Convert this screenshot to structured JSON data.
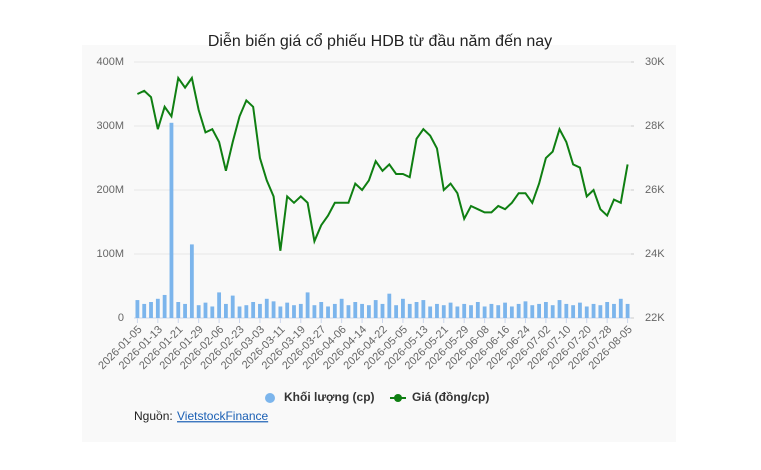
{
  "chart_data": {
    "type": "combo",
    "title": "Diễn biến giá cổ phiếu HDB từ đầu năm đến nay",
    "categories": [
      "2026-01-05",
      null,
      null,
      "2026-01-13",
      null,
      null,
      "2026-01-21",
      null,
      null,
      "2026-01-29",
      null,
      null,
      "2026-02-06",
      null,
      null,
      "2026-02-23",
      null,
      null,
      "2026-03-03",
      null,
      null,
      "2026-03-11",
      null,
      null,
      "2026-03-19",
      null,
      null,
      "2026-03-27",
      null,
      null,
      "2026-04-06",
      null,
      null,
      "2026-04-14",
      null,
      null,
      "2026-04-22",
      null,
      null,
      "2026-05-05",
      null,
      null,
      "2026-05-13",
      null,
      null,
      "2026-05-21",
      null,
      null,
      "2026-05-29",
      null,
      null,
      "2026-06-08",
      null,
      null,
      "2026-06-16",
      null,
      null,
      "2026-06-24",
      null,
      null,
      "2026-07-02",
      null,
      null,
      "2026-07-10",
      null,
      null,
      "2026-07-20",
      null,
      null,
      "2026-07-28",
      null,
      null,
      "2026-08-05"
    ],
    "series": [
      {
        "name": "Khối lượng (cp)",
        "type": "bar",
        "axis": "y",
        "color": "#7cb5ec",
        "values": [
          28000000,
          22000000,
          25000000,
          30000000,
          36000000,
          305000000,
          25000000,
          22000000,
          115000000,
          20000000,
          24000000,
          18000000,
          40000000,
          22000000,
          35000000,
          18000000,
          20000000,
          25000000,
          22000000,
          30000000,
          26000000,
          18000000,
          24000000,
          20000000,
          22000000,
          40000000,
          20000000,
          25000000,
          18000000,
          22000000,
          30000000,
          20000000,
          25000000,
          22000000,
          20000000,
          28000000,
          22000000,
          38000000,
          20000000,
          30000000,
          22000000,
          25000000,
          28000000,
          18000000,
          22000000,
          20000000,
          24000000,
          18000000,
          22000000,
          20000000,
          25000000,
          18000000,
          22000000,
          20000000,
          24000000,
          18000000,
          22000000,
          26000000,
          20000000,
          22000000,
          25000000,
          20000000,
          28000000,
          22000000,
          20000000,
          24000000,
          18000000,
          22000000,
          20000000,
          25000000,
          22000000,
          30000000,
          22000000
        ]
      },
      {
        "name": "Giá (đồng/cp)",
        "type": "line",
        "axis": "y2",
        "color": "#0f7f12",
        "values": [
          29000,
          29100,
          28900,
          27900,
          28600,
          28300,
          29500,
          29200,
          29500,
          28500,
          27800,
          27900,
          27500,
          26600,
          27500,
          28300,
          28800,
          28600,
          27000,
          26300,
          25800,
          24100,
          25800,
          25600,
          25800,
          25600,
          24400,
          24900,
          25200,
          25600,
          25600,
          25600,
          26200,
          26000,
          26300,
          26900,
          26600,
          26800,
          26500,
          26500,
          26400,
          27600,
          27900,
          27700,
          27300,
          26000,
          26200,
          25900,
          25100,
          25500,
          25400,
          25300,
          25300,
          25500,
          25400,
          25600,
          25900,
          25900,
          25600,
          26200,
          27000,
          27200,
          27900,
          27500,
          26800,
          26700,
          25800,
          26000,
          25400,
          25200,
          25700,
          25600,
          26800
        ]
      }
    ],
    "ylim": [
      0,
      400000000
    ],
    "yticks": [
      0,
      {
        "value": 100000000,
        "label": "100M"
      },
      {
        "value": 200000000,
        "label": "200M"
      },
      {
        "value": 300000000,
        "label": "300M"
      },
      {
        "value": 400000000,
        "label": "400M"
      }
    ],
    "y2lim": [
      22000,
      30000
    ],
    "y2ticks": [
      {
        "value": 22000,
        "label": "22K"
      },
      {
        "value": 24000,
        "label": "24K"
      },
      {
        "value": 26000,
        "label": "26K"
      },
      {
        "value": 28000,
        "label": "28K"
      },
      {
        "value": 30000,
        "label": "30K"
      }
    ],
    "grid": true,
    "source_label": "Nguồn:",
    "source_link": "VietstockFinance"
  }
}
